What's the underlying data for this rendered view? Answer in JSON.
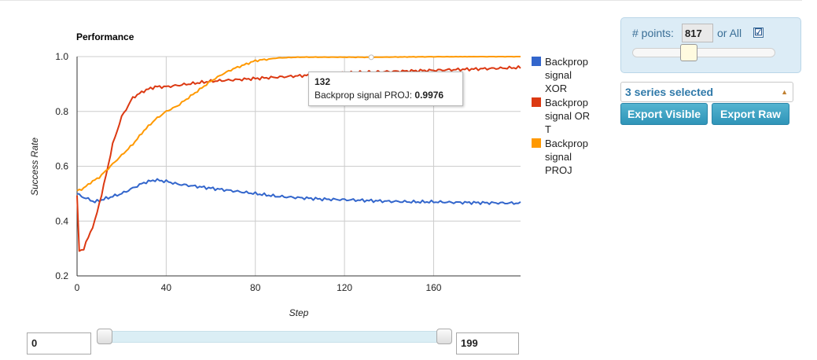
{
  "chart_data": {
    "type": "line",
    "title": "Performance",
    "xlabel": "Step",
    "ylabel": "Success Rate",
    "xlim": [
      0,
      199
    ],
    "ylim": [
      0.2,
      1.0
    ],
    "xticks": [
      0,
      40,
      80,
      120,
      160
    ],
    "yticks": [
      0.2,
      0.4,
      0.6,
      0.8,
      1.0
    ],
    "xtick_labels": [
      "0",
      "40",
      "80",
      "120",
      "160"
    ],
    "ytick_labels": [
      "0.2",
      "0.4",
      "0.6",
      "0.8",
      "1.0"
    ],
    "grid": true,
    "legend_position": "right",
    "series": [
      {
        "name": "Backprop signal XOR",
        "color": "#3366cc",
        "x": [
          0,
          2,
          5,
          8,
          12,
          16,
          20,
          25,
          30,
          35,
          40,
          45,
          50,
          60,
          70,
          80,
          90,
          100,
          110,
          120,
          130,
          140,
          150,
          160,
          170,
          180,
          190,
          199
        ],
        "y": [
          0.5,
          0.49,
          0.48,
          0.47,
          0.48,
          0.49,
          0.5,
          0.52,
          0.54,
          0.55,
          0.545,
          0.535,
          0.53,
          0.52,
          0.51,
          0.5,
          0.49,
          0.485,
          0.48,
          0.478,
          0.475,
          0.472,
          0.47,
          0.47,
          0.468,
          0.467,
          0.466,
          0.465
        ]
      },
      {
        "name": "Backprop signal OR T",
        "color": "#dc3912",
        "x": [
          0,
          1,
          3,
          5,
          8,
          12,
          16,
          20,
          25,
          30,
          35,
          40,
          50,
          60,
          70,
          80,
          90,
          100,
          120,
          140,
          160,
          180,
          199
        ],
        "y": [
          0.49,
          0.29,
          0.3,
          0.34,
          0.4,
          0.53,
          0.68,
          0.78,
          0.85,
          0.875,
          0.89,
          0.89,
          0.9,
          0.91,
          0.915,
          0.92,
          0.925,
          0.93,
          0.94,
          0.945,
          0.95,
          0.955,
          0.96
        ]
      },
      {
        "name": "Backprop signal PROJ",
        "color": "#ff9900",
        "x": [
          0,
          3,
          6,
          10,
          15,
          20,
          25,
          30,
          35,
          40,
          45,
          50,
          55,
          60,
          65,
          70,
          75,
          80,
          90,
          100,
          120,
          132,
          150,
          170,
          199
        ],
        "y": [
          0.51,
          0.52,
          0.54,
          0.56,
          0.6,
          0.64,
          0.68,
          0.73,
          0.77,
          0.8,
          0.82,
          0.85,
          0.88,
          0.91,
          0.935,
          0.955,
          0.97,
          0.985,
          0.995,
          0.998,
          0.998,
          0.9976,
          0.999,
          1.0,
          1.0
        ]
      }
    ],
    "tooltip": {
      "x": "132",
      "series": "Backprop signal PROJ",
      "value": "0.9976"
    }
  },
  "legend": [
    {
      "lines": [
        "Backprop",
        "signal",
        "XOR"
      ],
      "color": "#3366cc"
    },
    {
      "lines": [
        "Backprop",
        "signal OR",
        "T"
      ],
      "color": "#dc3912"
    },
    {
      "lines": [
        "Backprop",
        "signal",
        "PROJ"
      ],
      "color": "#ff9900"
    }
  ],
  "range": {
    "min": "0",
    "max": "199"
  },
  "controls": {
    "points_label": "# points:",
    "points_value": "817",
    "or_all": "or All",
    "all_checked": "☑",
    "series_select": "3 series selected",
    "export_visible": "Export Visible",
    "export_raw": "Export Raw"
  }
}
